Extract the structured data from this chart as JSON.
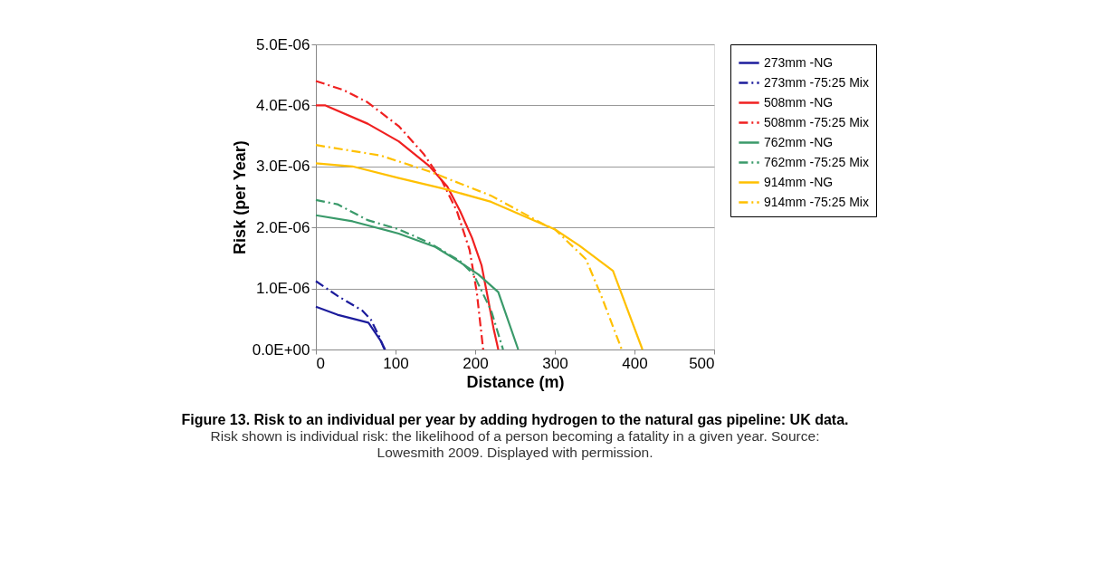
{
  "chart_data": {
    "type": "line",
    "title": "Figure 13. Risk to an individual per year by adding hydrogen to the natural gas pipeline: UK data.",
    "subtitle": [
      "Risk shown is individual risk: the likelihood of a person becoming a fatality in a given year. Source:",
      "Lowesmith 2009. Displayed with permission."
    ],
    "xlabel": "Distance (m)",
    "ylabel": "Risk (per Year)",
    "xlim": [
      0,
      500
    ],
    "xticks": [
      0,
      100,
      200,
      300,
      400,
      500
    ],
    "ylim": [
      0,
      5e-06
    ],
    "yticks": [
      {
        "value": 0,
        "label": "0.0E+00"
      },
      {
        "value": 1e-06,
        "label": "1.0E-06"
      },
      {
        "value": 2e-06,
        "label": "2.0E-06"
      },
      {
        "value": 3e-06,
        "label": "3.0E-06"
      },
      {
        "value": 4e-06,
        "label": "4.0E-06"
      },
      {
        "value": 5e-06,
        "label": "5.0E-06"
      }
    ],
    "grid": "y",
    "legend": "right",
    "marker": "none",
    "series": [
      {
        "name": "273mm -NG",
        "color": "#1c1c9c",
        "line_style": "solid",
        "x": [
          0,
          27,
          66,
          81,
          87
        ],
        "values": [
          7e-07,
          5.7e-07,
          4.4e-07,
          1.5e-07,
          0
        ]
      },
      {
        "name": "273mm -75:25 Mix",
        "color": "#1c1c9c",
        "line_style": "dashed",
        "x": [
          0,
          27,
          58,
          69,
          80,
          86
        ],
        "values": [
          1.12e-06,
          8.8e-07,
          6.4e-07,
          4.9e-07,
          2e-07,
          0
        ]
      },
      {
        "name": "508mm -NG",
        "color": "#f02020",
        "line_style": "solid",
        "x": [
          0,
          12,
          65,
          104,
          142,
          165,
          181,
          196,
          208,
          216,
          223,
          229
        ],
        "values": [
          4e-06,
          4e-06,
          3.7e-06,
          3.41e-06,
          3.01e-06,
          2.67e-06,
          2.27e-06,
          1.83e-06,
          1.38e-06,
          8.4e-07,
          3.5e-07,
          0
        ]
      },
      {
        "name": "508mm -75:25 Mix",
        "color": "#f02020",
        "line_style": "dashed",
        "x": [
          0,
          35,
          65,
          104,
          135,
          158,
          177,
          193,
          202,
          210
        ],
        "values": [
          4.4e-06,
          4.25e-06,
          4.05e-06,
          3.66e-06,
          3.21e-06,
          2.77e-06,
          2.27e-06,
          1.63e-06,
          9.4e-07,
          0
        ]
      },
      {
        "name": "762mm -NG",
        "color": "#3a9a6a",
        "line_style": "solid",
        "x": [
          0,
          46,
          104,
          150,
          181,
          204,
          229,
          254
        ],
        "values": [
          2.2e-06,
          2.1e-06,
          1.9e-06,
          1.68e-06,
          1.43e-06,
          1.23e-06,
          9.4e-07,
          0
        ]
      },
      {
        "name": "762mm -75:25 Mix",
        "color": "#3a9a6a",
        "line_style": "dashed",
        "x": [
          0,
          27,
          65,
          104,
          142,
          181,
          198,
          220,
          235
        ],
        "values": [
          2.45e-06,
          2.38e-06,
          2.12e-06,
          1.97e-06,
          1.75e-06,
          1.45e-06,
          1.23e-06,
          6.4e-07,
          0
        ]
      },
      {
        "name": "914mm -NG",
        "color": "#ffc000",
        "line_style": "solid",
        "x": [
          0,
          46,
          104,
          165,
          220,
          289,
          300,
          331,
          373,
          410
        ],
        "values": [
          3.05e-06,
          3e-06,
          2.81e-06,
          2.62e-06,
          2.42e-06,
          2.03e-06,
          1.97e-06,
          1.7e-06,
          1.29e-06,
          0
        ]
      },
      {
        "name": "914mm -75:25 Mix",
        "color": "#ffc000",
        "line_style": "dashed",
        "x": [
          0,
          81,
          142,
          220,
          289,
          300,
          339,
          358,
          384
        ],
        "values": [
          3.35e-06,
          3.18e-06,
          2.92e-06,
          2.52e-06,
          2.03e-06,
          1.97e-06,
          1.48e-06,
          8.9e-07,
          0
        ]
      }
    ]
  }
}
